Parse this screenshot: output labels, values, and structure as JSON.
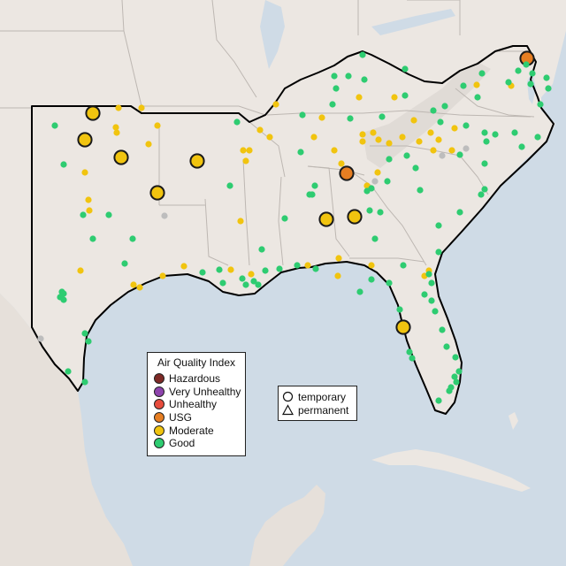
{
  "map": {
    "colors": {
      "ocean": "#cfdbe6",
      "land": "#ece7e2",
      "mountain": "#dcd6d1",
      "border": "#bdb7b2",
      "region_outline": "#000000",
      "no_data": "#bdbdbd"
    }
  },
  "legend": {
    "title": "Air Quality Index",
    "categories": [
      {
        "label": "Hazardous",
        "color": "#7e2a26"
      },
      {
        "label": "Very Unhealthy",
        "color": "#8e44ad"
      },
      {
        "label": "Unhealthy",
        "color": "#e74c3c"
      },
      {
        "label": "USG",
        "color": "#e67e22"
      },
      {
        "label": "Moderate",
        "color": "#f1c40f"
      },
      {
        "label": "Good",
        "color": "#2ecc71"
      }
    ]
  },
  "shape_legend": {
    "items": [
      {
        "label": "temporary",
        "icon": "circle-icon"
      },
      {
        "label": "permanent",
        "icon": "triangle-icon"
      }
    ]
  }
}
